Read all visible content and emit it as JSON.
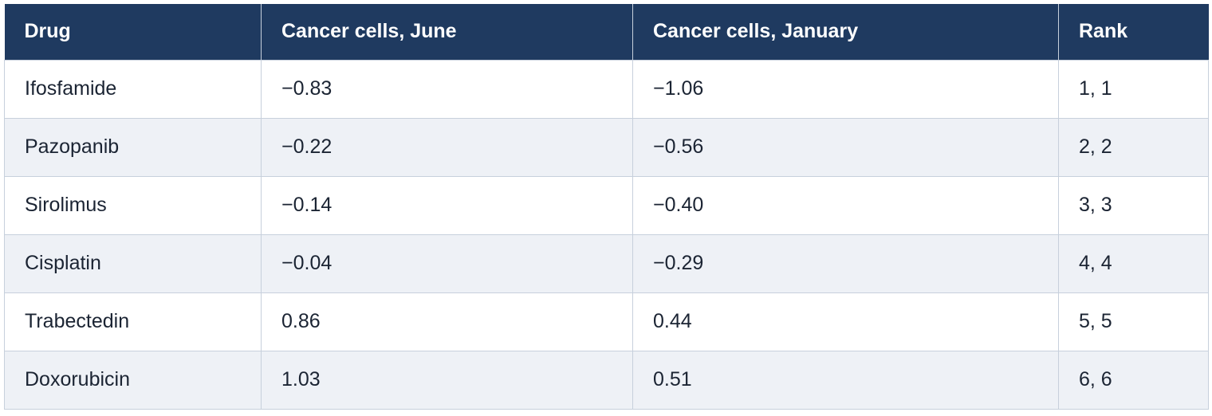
{
  "table": {
    "headers": [
      "Drug",
      "Cancer cells, June",
      "Cancer cells, January",
      "Rank"
    ],
    "rows": [
      [
        "Ifosfamide",
        "−0.83",
        "−1.06",
        "1, 1"
      ],
      [
        "Pazopanib",
        "−0.22",
        "−0.56",
        "2, 2"
      ],
      [
        "Sirolimus",
        "−0.14",
        "−0.40",
        "3, 3"
      ],
      [
        "Cisplatin",
        "−0.04",
        "−0.29",
        "4, 4"
      ],
      [
        "Trabectedin",
        "0.86",
        "0.44",
        "5, 5"
      ],
      [
        "Doxorubicin",
        "1.03",
        "0.51",
        "6, 6"
      ]
    ]
  },
  "colors": {
    "header_bg": "#1f3a60",
    "header_text": "#ffffff",
    "row_alt_bg": "#eef1f6",
    "border": "#c7d0dc"
  }
}
